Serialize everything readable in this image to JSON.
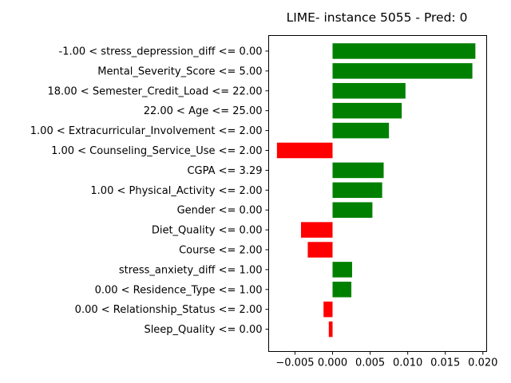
{
  "chart_data": {
    "type": "bar",
    "orientation": "horizontal",
    "title": "LIME- instance 5055 - Pred: 0",
    "xlabel": "",
    "ylabel": "",
    "xlim": [
      -0.0085,
      0.0205
    ],
    "xticks": [
      -0.005,
      0.0,
      0.005,
      0.01,
      0.015,
      0.02
    ],
    "xtick_labels": [
      "−0.005",
      "0.000",
      "0.005",
      "0.010",
      "0.015",
      "0.020"
    ],
    "grid": false,
    "positive_color": "#008000",
    "negative_color": "#ff0000",
    "categories": [
      "-1.00 < stress_depression_diff <= 0.00",
      "Mental_Severity_Score <= 5.00",
      "18.00 < Semester_Credit_Load <= 22.00",
      "22.00 < Age <= 25.00",
      "1.00 < Extracurricular_Involvement <= 2.00",
      "1.00 < Counseling_Service_Use <= 2.00",
      "CGPA <= 3.29",
      "1.00 < Physical_Activity <= 2.00",
      "Gender <= 0.00",
      "Diet_Quality <= 0.00",
      "Course <= 2.00",
      "stress_anxiety_diff <= 1.00",
      "0.00 < Residence_Type <= 1.00",
      "0.00 < Relationship_Status <= 2.00",
      "Sleep_Quality <= 0.00"
    ],
    "values": [
      0.019,
      0.0186,
      0.0097,
      0.0092,
      0.0075,
      -0.0074,
      0.0068,
      0.0066,
      0.0053,
      -0.0042,
      -0.0033,
      0.0026,
      0.0025,
      -0.0012,
      -0.0005
    ]
  }
}
